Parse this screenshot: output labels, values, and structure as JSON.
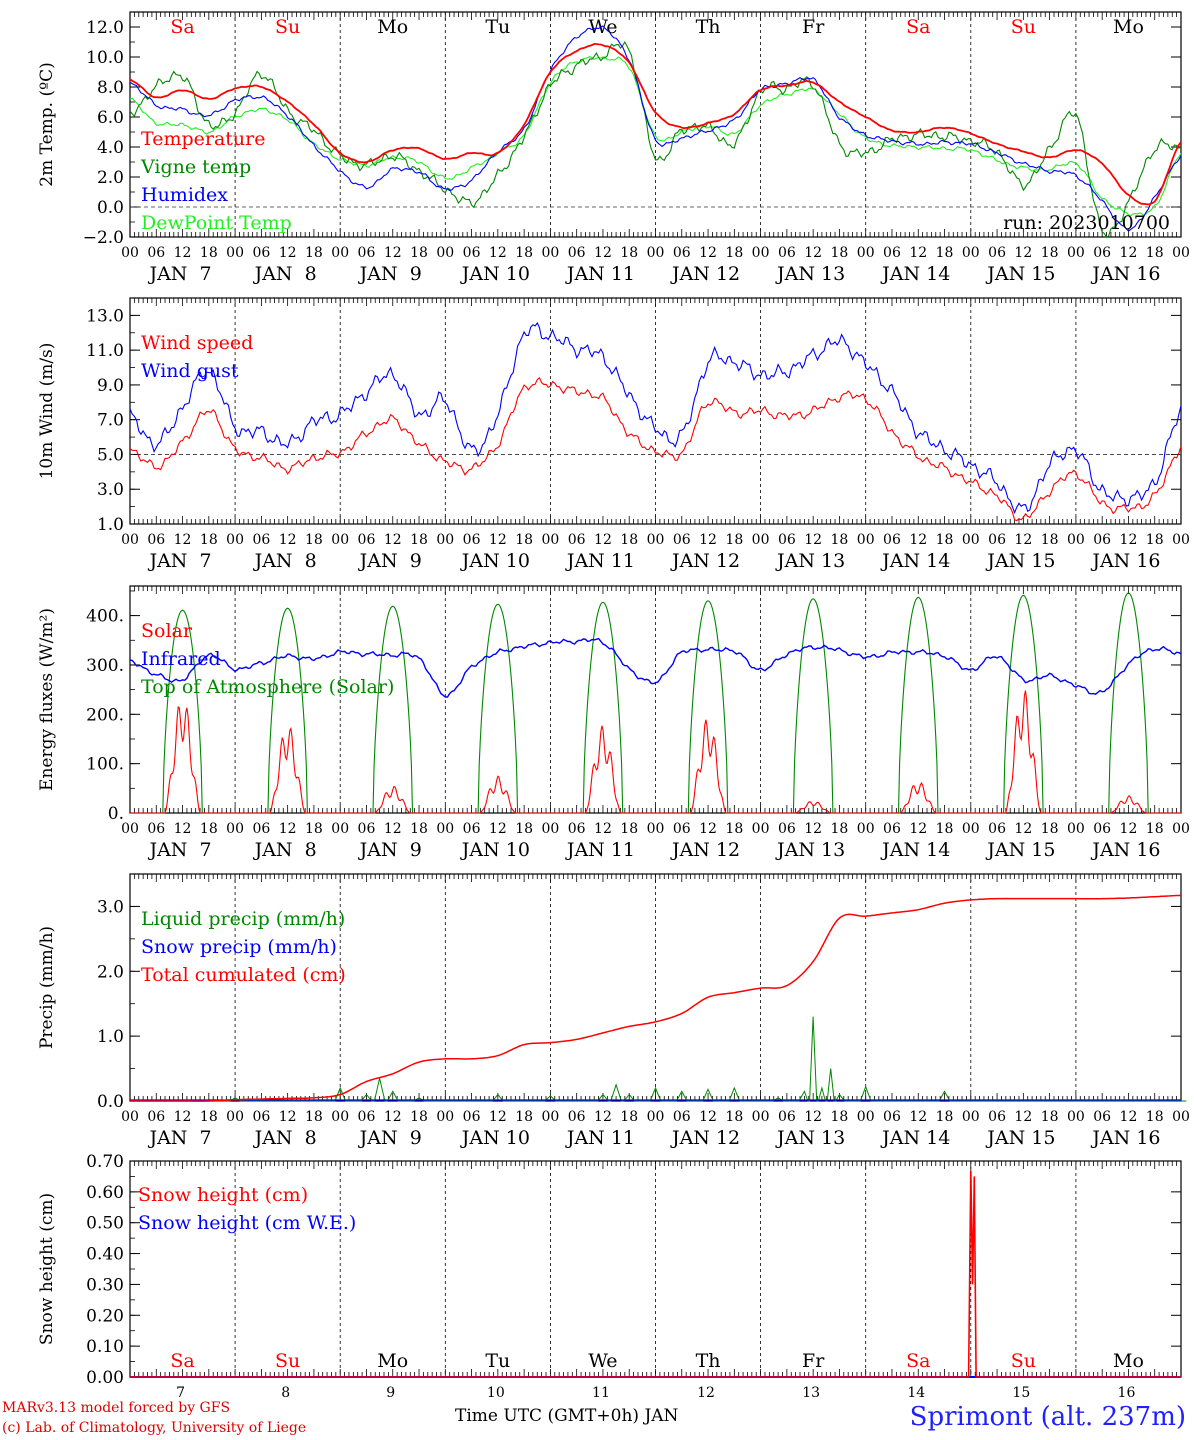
{
  "chart_data": [
    {
      "type": "line",
      "panel": "temperature",
      "ylabel": "2m Temp. (ºC)",
      "ylim": [
        -2,
        13
      ],
      "yticks": [
        -2,
        0,
        2,
        4,
        6,
        8,
        10,
        12
      ],
      "ytick_labels": [
        "−2.0",
        "0.0",
        "2.0",
        "4.0",
        "6.0",
        "8.0",
        "10.0",
        "12.0"
      ],
      "reference_line": 0,
      "annotation": "run: 2023010700",
      "colors": {
        "Temperature": "#ff0000",
        "Vigne temp": "#008800",
        "Humidex": "#0000ff",
        "DewPoint Temp": "#22ee22"
      },
      "x_hours": [
        0,
        6,
        12,
        18,
        24,
        30,
        36,
        42,
        48,
        54,
        60,
        66,
        72,
        78,
        84,
        90,
        96,
        102,
        108,
        114,
        120,
        126,
        132,
        138,
        144,
        150,
        156,
        162,
        168,
        174,
        180,
        186,
        192,
        198,
        204,
        210,
        216,
        222,
        228,
        234,
        240
      ],
      "series": [
        {
          "name": "Temperature",
          "values": [
            8.5,
            7.3,
            7.8,
            7.2,
            7.9,
            8.0,
            7.0,
            5.5,
            3.6,
            3.0,
            3.8,
            3.9,
            3.2,
            3.6,
            3.6,
            5.5,
            9.0,
            10.4,
            10.8,
            9.6,
            6.3,
            5.3,
            5.6,
            6.2,
            7.8,
            8.1,
            8.3,
            7.0,
            6.0,
            5.1,
            5.0,
            5.3,
            4.9,
            4.2,
            3.7,
            3.3,
            3.8,
            2.9,
            0.8,
            0.4,
            4.3
          ]
        },
        {
          "name": "Vigne temp",
          "values": [
            6.2,
            8.0,
            8.7,
            5.5,
            6.3,
            8.9,
            6.4,
            5.1,
            3.4,
            2.8,
            3.4,
            2.4,
            1.2,
            0.3,
            2.1,
            4.7,
            8.1,
            9.4,
            10.1,
            10.4,
            3.3,
            5.1,
            5.3,
            4.2,
            7.7,
            7.9,
            8.2,
            4.2,
            3.6,
            4.5,
            4.8,
            4.7,
            4.4,
            3.7,
            1.5,
            3.8,
            6.1,
            -1.6,
            0.3,
            3.9,
            3.9
          ]
        },
        {
          "name": "Humidex",
          "values": [
            8.3,
            6.8,
            6.5,
            6.1,
            7.1,
            7.3,
            6.1,
            4.1,
            2.4,
            1.3,
            2.5,
            2.3,
            1.2,
            1.8,
            3.7,
            5.2,
            9.1,
            11.3,
            11.9,
            9.8,
            4.5,
            4.6,
            5.1,
            5.8,
            7.8,
            8.2,
            8.5,
            6.0,
            4.8,
            4.4,
            4.2,
            4.3,
            4.2,
            3.6,
            2.9,
            2.4,
            2.1,
            0.4,
            -1.5,
            0.6,
            3.4
          ]
        },
        {
          "name": "DewPoint Temp",
          "values": [
            7.2,
            5.6,
            5.5,
            5.0,
            6.0,
            6.5,
            5.8,
            4.2,
            3.2,
            2.8,
            3.3,
            3.0,
            1.9,
            2.6,
            3.6,
            4.8,
            8.3,
            9.7,
            9.9,
            9.3,
            4.7,
            5.0,
            5.4,
            4.9,
            6.8,
            7.5,
            7.8,
            6.2,
            4.6,
            4.1,
            4.0,
            3.9,
            3.8,
            3.1,
            2.6,
            2.5,
            2.9,
            0.6,
            -0.4,
            0.0,
            3.6
          ]
        }
      ]
    },
    {
      "type": "line",
      "panel": "wind",
      "ylabel": "10m Wind (m/s)",
      "ylim": [
        1,
        14
      ],
      "yticks": [
        1,
        3,
        5,
        7,
        9,
        11,
        13
      ],
      "ytick_labels": [
        "1.0",
        "3.0",
        "5.0",
        "7.0",
        "9.0",
        "11.0",
        "13.0"
      ],
      "reference_line": 5,
      "colors": {
        "Wind speed": "#ff0000",
        "Wind gust": "#0000ff"
      },
      "x_hours": [
        0,
        6,
        12,
        18,
        24,
        30,
        36,
        42,
        48,
        54,
        60,
        66,
        72,
        78,
        84,
        90,
        96,
        102,
        108,
        114,
        120,
        126,
        132,
        138,
        144,
        150,
        156,
        162,
        168,
        174,
        180,
        186,
        192,
        198,
        204,
        210,
        216,
        222,
        228,
        234,
        240
      ],
      "series": [
        {
          "name": "Wind speed",
          "values": [
            5.3,
            4.3,
            5.7,
            7.5,
            5.3,
            4.8,
            4.2,
            4.8,
            5.1,
            6.2,
            7.0,
            5.6,
            4.6,
            4.2,
            5.6,
            8.8,
            9.0,
            8.6,
            8.2,
            6.2,
            5.2,
            5.1,
            8.0,
            7.4,
            7.5,
            7.2,
            7.5,
            8.3,
            8.2,
            6.3,
            4.9,
            4.2,
            3.4,
            2.6,
            1.3,
            2.9,
            3.9,
            2.2,
            1.9,
            2.6,
            5.4
          ]
        },
        {
          "name": "Wind gust",
          "values": [
            7.2,
            5.6,
            7.7,
            9.8,
            6.6,
            6.3,
            5.6,
            6.9,
            7.3,
            8.6,
            9.6,
            7.3,
            8.1,
            5.2,
            7.3,
            11.9,
            11.8,
            11.1,
            10.6,
            8.4,
            6.5,
            6.1,
            10.3,
            10.3,
            9.6,
            9.8,
            10.7,
            11.5,
            10.2,
            8.6,
            6.3,
            5.3,
            4.4,
            3.4,
            1.8,
            4.4,
            5.2,
            2.9,
            2.5,
            3.4,
            7.5
          ]
        }
      ]
    },
    {
      "type": "line",
      "panel": "energy",
      "ylabel": "Energy fluxes (W/m²)",
      "ylim": [
        0,
        460
      ],
      "yticks": [
        0,
        100,
        200,
        300,
        400
      ],
      "ytick_labels": [
        "0.",
        "100.",
        "200.",
        "300.",
        "400."
      ],
      "colors": {
        "Solar": "#ff0000",
        "Infrared": "#0000ff",
        "Top of Atmosphere (Solar)": "#008800"
      },
      "solar_daily_peak": [
        240,
        182,
        55,
        75,
        178,
        195,
        25,
        65,
        255,
        35
      ],
      "toa_daily_peak": [
        411,
        415,
        419,
        423,
        427,
        430,
        434,
        437,
        441,
        446
      ],
      "series": [
        {
          "name": "Infrared",
          "x_hours": [
            0,
            6,
            12,
            18,
            24,
            30,
            36,
            42,
            48,
            54,
            60,
            66,
            72,
            78,
            84,
            90,
            96,
            102,
            108,
            114,
            120,
            126,
            132,
            138,
            144,
            150,
            156,
            162,
            168,
            174,
            180,
            186,
            192,
            198,
            204,
            210,
            216,
            222,
            228,
            234,
            240
          ],
          "values": [
            308,
            280,
            270,
            320,
            292,
            304,
            318,
            312,
            326,
            322,
            320,
            314,
            238,
            296,
            325,
            337,
            345,
            348,
            346,
            292,
            265,
            325,
            330,
            328,
            290,
            322,
            336,
            330,
            316,
            325,
            326,
            318,
            290,
            318,
            270,
            278,
            258,
            245,
            302,
            333,
            322
          ]
        }
      ]
    },
    {
      "type": "line",
      "panel": "precip",
      "ylabel": "Precip (mm/h)",
      "ylim": [
        0,
        3.5
      ],
      "yticks": [
        0,
        1,
        2,
        3
      ],
      "ytick_labels": [
        "0.0",
        "1.0",
        "2.0",
        "3.0"
      ],
      "colors": {
        "Liquid precip (mm/h)": "#008800",
        "Snow precip (mm/h)": "#0000ff",
        "Total cumulated (cm)": "#ff0000"
      },
      "series": [
        {
          "name": "Total cumulated (cm)",
          "x_hours": [
            0,
            6,
            12,
            18,
            24,
            30,
            36,
            42,
            48,
            54,
            60,
            66,
            72,
            78,
            84,
            90,
            96,
            102,
            108,
            114,
            120,
            126,
            132,
            138,
            144,
            150,
            156,
            162,
            168,
            174,
            180,
            186,
            192,
            198,
            204,
            210,
            216,
            222,
            228,
            234,
            240
          ],
          "values": [
            0.0,
            0.0,
            0.0,
            0.0,
            0.02,
            0.03,
            0.04,
            0.05,
            0.1,
            0.3,
            0.42,
            0.6,
            0.65,
            0.65,
            0.7,
            0.87,
            0.9,
            0.95,
            1.05,
            1.15,
            1.22,
            1.35,
            1.6,
            1.67,
            1.74,
            1.78,
            2.15,
            2.82,
            2.85,
            2.9,
            2.95,
            3.05,
            3.1,
            3.12,
            3.12,
            3.12,
            3.12,
            3.12,
            3.13,
            3.15,
            3.17
          ]
        },
        {
          "name": "Liquid precip (mm/h)",
          "x_hours": [
            24,
            48,
            54,
            57,
            60,
            66,
            84,
            96,
            108,
            111,
            114,
            120,
            126,
            132,
            138,
            148,
            154,
            156,
            158,
            160,
            162,
            168,
            186,
            240
          ],
          "values": [
            0.05,
            0.2,
            0.1,
            0.35,
            0.15,
            0.05,
            0.1,
            0.08,
            0.1,
            0.25,
            0.1,
            0.2,
            0.15,
            0.18,
            0.2,
            0.05,
            0.15,
            1.3,
            0.2,
            0.5,
            0.1,
            0.22,
            0.15,
            0.0
          ]
        }
      ]
    },
    {
      "type": "line",
      "panel": "snow",
      "ylabel": "Snow height (cm)",
      "ylim": [
        0,
        0.7
      ],
      "yticks": [
        0,
        0.1,
        0.2,
        0.3,
        0.4,
        0.5,
        0.6,
        0.7
      ],
      "ytick_labels": [
        "0.00",
        "0.10",
        "0.20",
        "0.30",
        "0.40",
        "0.50",
        "0.60",
        "0.70"
      ],
      "colors": {
        "Snow height (cm)": "#ff0000",
        "Snow height (cm W.E.)": "#0000ff"
      },
      "series": [
        {
          "name": "Snow height (cm)",
          "x_hours": [
            0,
            191.5,
            192,
            192.4,
            192.8,
            193.2,
            240
          ],
          "values": [
            0,
            0,
            0.67,
            0.3,
            0.65,
            0,
            0
          ]
        },
        {
          "name": "Snow height (cm W.E.)",
          "x_hours": [
            0,
            240
          ],
          "values": [
            0,
            0
          ]
        }
      ]
    }
  ],
  "weekdays": [
    "Sa",
    "Su",
    "Mo",
    "Tu",
    "We",
    "Th",
    "Fr",
    "Sa",
    "Su",
    "Mo"
  ],
  "weekend_color": "#ff0000",
  "hour_tick_labels": [
    "00",
    "06",
    "12",
    "18"
  ],
  "final_hour_label": "00",
  "date_labels": [
    "JAN  7",
    "JAN  8",
    "JAN  9",
    "JAN 10",
    "JAN 11",
    "JAN 12",
    "JAN 13",
    "JAN 14",
    "JAN 15",
    "JAN 16"
  ],
  "bottom_day_numbers": [
    "7",
    "8",
    "9",
    "10",
    "11",
    "12",
    "13",
    "14",
    "15",
    "16"
  ],
  "footer": {
    "credit_line1": "MARv3.13 model forced by GFS",
    "credit_line2": "(c) Lab. of Climatology, University of Liege",
    "x_axis_title": "Time UTC (GMT+0h) JAN",
    "station": "Sprimont (alt. 237m)"
  }
}
